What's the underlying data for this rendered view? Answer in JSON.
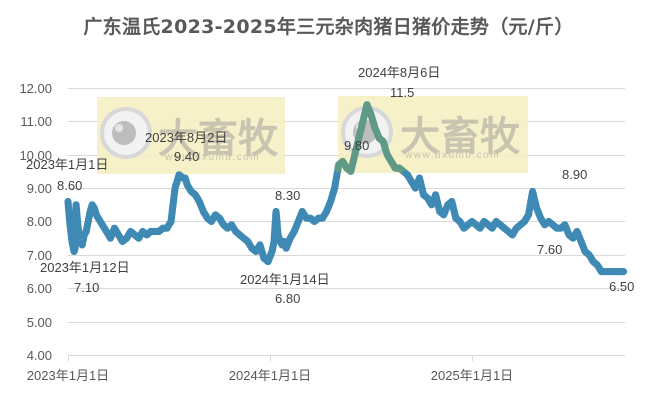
{
  "title": "广东温氏2023-2025年三元杂肉猪日猪价走势（元/斤）",
  "watermark": {
    "text": "大畜牧",
    "url": "www.dxumu.com"
  },
  "colors": {
    "series": "#3f8ab5",
    "highlight": "#5e9a86",
    "grid": "#d9d9d9",
    "watermark_bg": "#f5efc0",
    "text": "#595959"
  },
  "chart_data": {
    "type": "line",
    "title": "广东温氏2023-2025年三元杂肉猪日猪价走势（元/斤）",
    "xlabel": "",
    "ylabel": "",
    "ylim": [
      4.0,
      12.0
    ],
    "yticks": [
      "4.00",
      "5.00",
      "6.00",
      "7.00",
      "8.00",
      "9.00",
      "10.00",
      "11.00",
      "12.00"
    ],
    "xticks": [
      "2023年1月1日",
      "2024年1月1日",
      "2025年1月1日"
    ],
    "grid": true,
    "legend": "none",
    "series": [
      {
        "name": "三元杂肉猪日猪价",
        "x_years": [
          0.0,
          0.01,
          0.02,
          0.03,
          0.035,
          0.04,
          0.05,
          0.06,
          0.07,
          0.08,
          0.09,
          0.1,
          0.11,
          0.12,
          0.13,
          0.14,
          0.15,
          0.16,
          0.17,
          0.19,
          0.21,
          0.23,
          0.25,
          0.27,
          0.29,
          0.31,
          0.33,
          0.35,
          0.37,
          0.39,
          0.41,
          0.43,
          0.45,
          0.47,
          0.49,
          0.51,
          0.53,
          0.55,
          0.57,
          0.58,
          0.59,
          0.61,
          0.63,
          0.65,
          0.67,
          0.69,
          0.71,
          0.73,
          0.75,
          0.77,
          0.79,
          0.81,
          0.83,
          0.85,
          0.87,
          0.89,
          0.91,
          0.93,
          0.95,
          0.97,
          0.99,
          1.01,
          1.02,
          1.03,
          1.04,
          1.05,
          1.06,
          1.07,
          1.08,
          1.1,
          1.12,
          1.14,
          1.16,
          1.18,
          1.2,
          1.22,
          1.24,
          1.26,
          1.28,
          1.3,
          1.32,
          1.34,
          1.36,
          1.38,
          1.4,
          1.42,
          1.44,
          1.46,
          1.48,
          1.5,
          1.52,
          1.54,
          1.56,
          1.58,
          1.6,
          1.62,
          1.64,
          1.66,
          1.68,
          1.7,
          1.72,
          1.74,
          1.76,
          1.78,
          1.8,
          1.82,
          1.84,
          1.86,
          1.88,
          1.9,
          1.92,
          1.94,
          1.96,
          1.98,
          2.0,
          2.02,
          2.04,
          2.06,
          2.08,
          2.1,
          2.12,
          2.14,
          2.16,
          2.18,
          2.2,
          2.22,
          2.24,
          2.26,
          2.28,
          2.3,
          2.32,
          2.34,
          2.36,
          2.38,
          2.4,
          2.42,
          2.44,
          2.46,
          2.48,
          2.5,
          2.52,
          2.54,
          2.56,
          2.58,
          2.6,
          2.62,
          2.64,
          2.66,
          2.68,
          2.7,
          2.72,
          2.74,
          2.75
        ],
        "values": [
          8.6,
          7.9,
          7.4,
          7.1,
          7.2,
          8.5,
          7.8,
          7.5,
          7.3,
          7.6,
          7.7,
          8.0,
          8.3,
          8.5,
          8.4,
          8.2,
          8.1,
          8.0,
          7.9,
          7.7,
          7.5,
          7.8,
          7.6,
          7.4,
          7.5,
          7.7,
          7.6,
          7.5,
          7.7,
          7.6,
          7.7,
          7.7,
          7.7,
          7.8,
          7.8,
          8.0,
          9.0,
          9.4,
          9.3,
          9.3,
          9.1,
          8.9,
          8.8,
          8.6,
          8.3,
          8.1,
          8.0,
          8.2,
          8.1,
          7.9,
          7.8,
          7.9,
          7.7,
          7.6,
          7.5,
          7.4,
          7.2,
          7.1,
          7.3,
          6.9,
          6.8,
          7.1,
          7.4,
          8.3,
          7.6,
          7.4,
          7.3,
          7.4,
          7.2,
          7.5,
          7.7,
          8.0,
          8.3,
          8.1,
          8.1,
          8.0,
          8.1,
          8.1,
          8.3,
          8.6,
          9.0,
          9.7,
          9.8,
          9.6,
          9.5,
          10.0,
          10.5,
          11.0,
          11.5,
          11.2,
          10.8,
          10.5,
          10.4,
          10.0,
          9.8,
          9.6,
          9.6,
          9.5,
          9.4,
          9.2,
          9.0,
          9.3,
          8.8,
          8.7,
          8.5,
          8.8,
          8.3,
          8.2,
          8.5,
          8.6,
          8.1,
          8.0,
          7.8,
          7.9,
          8.0,
          7.9,
          7.8,
          8.0,
          7.9,
          7.8,
          8.0,
          7.9,
          7.8,
          7.7,
          7.6,
          7.8,
          7.9,
          8.0,
          8.2,
          8.9,
          8.4,
          8.1,
          7.9,
          8.0,
          7.9,
          7.8,
          7.8,
          7.9,
          7.6,
          7.5,
          7.7,
          7.4,
          7.1,
          7.0,
          6.8,
          6.7,
          6.5,
          6.5,
          6.5,
          6.5,
          6.5,
          6.5,
          6.5,
          6.5,
          6.5,
          6.5,
          6.5
        ]
      }
    ],
    "annotations": [
      {
        "date": "2023年1月1日",
        "value": "8.60"
      },
      {
        "date": "2023年1月12日",
        "value": "7.10"
      },
      {
        "date": "2023年8月2日",
        "value": "9.40"
      },
      {
        "date": "2024年1月14日",
        "value": "6.80"
      },
      {
        "date": "",
        "value": "8.30"
      },
      {
        "date": "",
        "value": "9.80"
      },
      {
        "date": "2024年8月6日",
        "value": "11.5"
      },
      {
        "date": "",
        "value": "8.90"
      },
      {
        "date": "",
        "value": "7.60"
      },
      {
        "date": "",
        "value": "6.50"
      }
    ]
  }
}
